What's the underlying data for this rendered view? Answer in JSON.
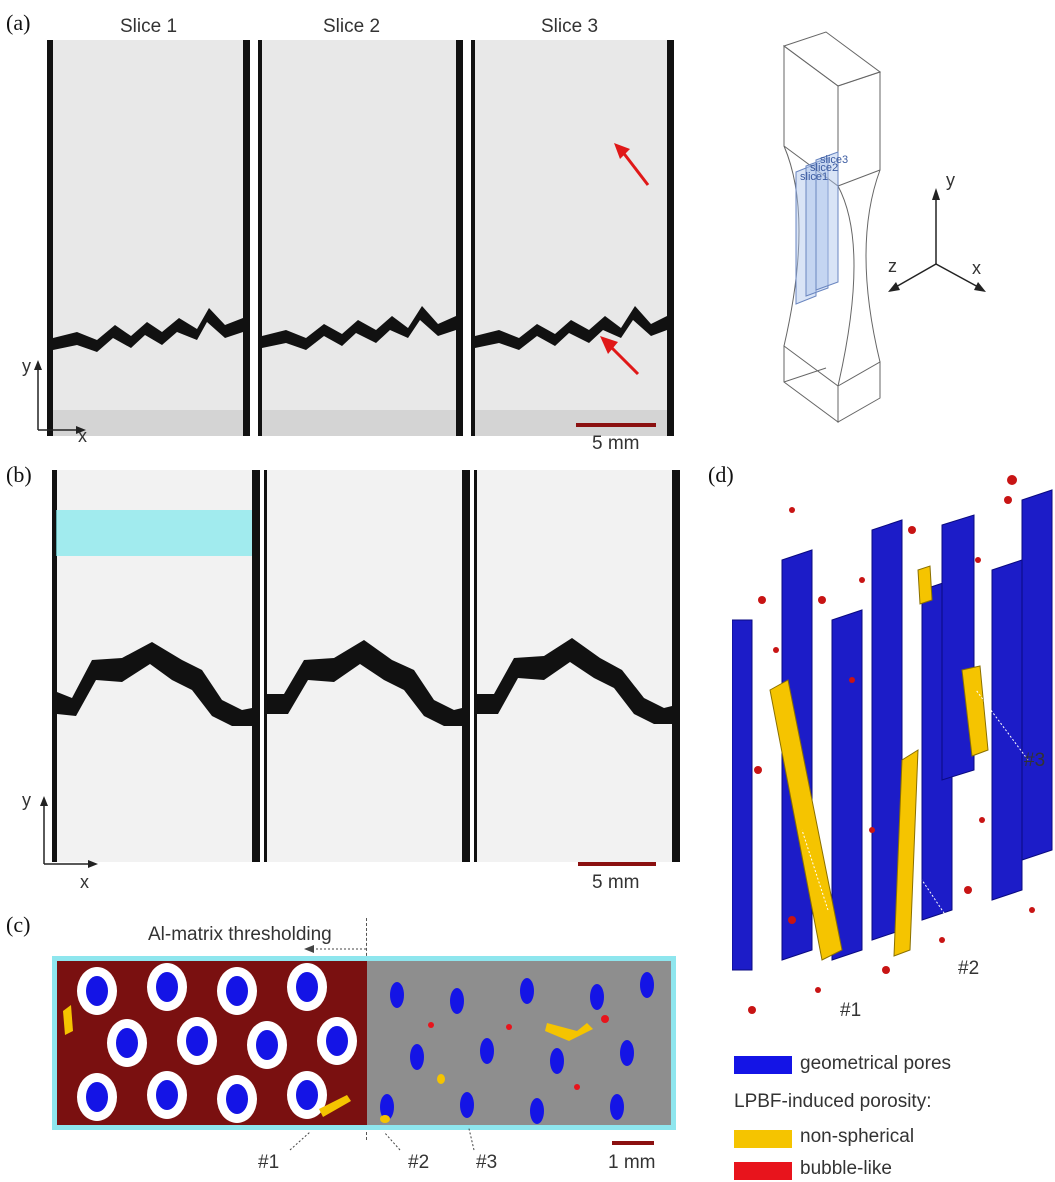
{
  "panels": {
    "a": {
      "label": "(a)",
      "slice_titles": [
        "Slice 1",
        "Slice 2",
        "Slice 3"
      ],
      "axis_y": "y",
      "axis_x": "x",
      "scale_bar": "5 mm"
    },
    "b": {
      "label": "(b)",
      "axis_y": "y",
      "axis_x": "x",
      "scale_bar": "5 mm"
    },
    "c": {
      "label": "(c)",
      "threshold_label": "Al-matrix thresholding",
      "markers": [
        "#1",
        "#2",
        "#3"
      ],
      "scale_bar": "1 mm"
    },
    "d": {
      "label": "(d)",
      "markers": [
        "#1",
        "#2",
        "#3"
      ]
    }
  },
  "specimen": {
    "slice_labels": [
      "slice3",
      "slice2",
      "slice1"
    ],
    "axes": {
      "y": "y",
      "z": "z",
      "x": "x"
    }
  },
  "legend": {
    "geometrical": "geometrical pores",
    "lpbf_title": "LPBF-induced porosity:",
    "non_spherical": "non-spherical",
    "bubble": "bubble-like"
  },
  "colors": {
    "geometrical": "#1414e6",
    "non_spherical": "#f5c400",
    "bubble": "#e8141c",
    "frame_cyan": "#8ee6ee",
    "scale_bar": "#8b1010",
    "arrow": "#e01818"
  }
}
